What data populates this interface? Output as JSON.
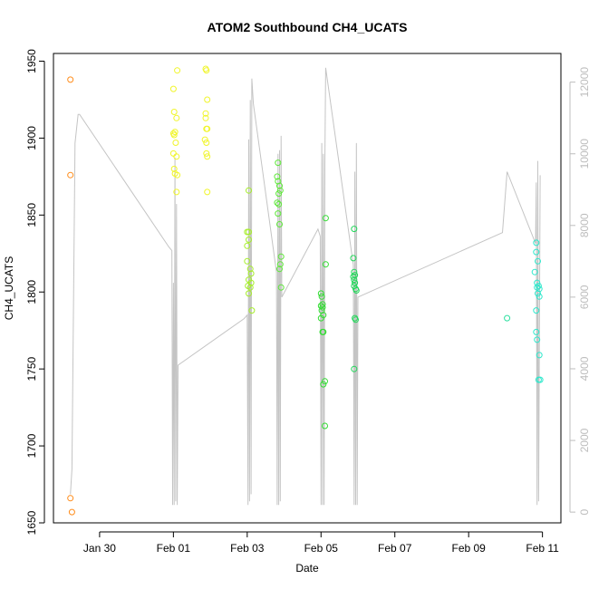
{
  "chart_data": {
    "type": "scatter",
    "title": "ATOM2 Southbound CH4_UCATS",
    "xlabel": "Date",
    "ylabel": "CH4_UCATS",
    "xlim": [
      "2017-01-28T18:00",
      "2017-02-11T12:00"
    ],
    "ylim": [
      1650,
      1955
    ],
    "y2lim": [
      -300,
      12800
    ],
    "x_ticks": [
      {
        "date": "2017-01-30",
        "label": "Jan 30"
      },
      {
        "date": "2017-02-01",
        "label": "Feb 01"
      },
      {
        "date": "2017-02-03",
        "label": "Feb 03"
      },
      {
        "date": "2017-02-05",
        "label": "Feb 05"
      },
      {
        "date": "2017-02-07",
        "label": "Feb 07"
      },
      {
        "date": "2017-02-09",
        "label": "Feb 09"
      },
      {
        "date": "2017-02-11",
        "label": "Feb 11"
      }
    ],
    "y_ticks": [
      1650,
      1700,
      1750,
      1800,
      1850,
      1900,
      1950
    ],
    "y2_ticks": [
      0,
      2000,
      4000,
      6000,
      8000,
      10000,
      12000
    ],
    "grid": false,
    "series": [
      {
        "color": "#ff8c1a",
        "points": [
          [
            "2017-01-29T05:00",
            1938
          ],
          [
            "2017-01-29T05:00",
            1876
          ],
          [
            "2017-01-29T05:00",
            1666
          ],
          [
            "2017-01-29T06:00",
            1657
          ]
        ]
      },
      {
        "color": "#f0f52a",
        "points": [
          [
            "2017-02-01T00:00",
            1932
          ],
          [
            "2017-02-01T00:30",
            1917
          ],
          [
            "2017-02-01T02:00",
            1913
          ],
          [
            "2017-02-01T02:30",
            1944
          ],
          [
            "2017-02-01T00:00",
            1903
          ],
          [
            "2017-02-01T00:30",
            1902
          ],
          [
            "2017-02-01T01:00",
            1904
          ],
          [
            "2017-02-01T01:30",
            1897
          ],
          [
            "2017-02-01T00:00",
            1890
          ],
          [
            "2017-02-01T02:00",
            1888
          ],
          [
            "2017-02-01T00:30",
            1880
          ],
          [
            "2017-02-01T01:00",
            1877
          ],
          [
            "2017-02-01T02:30",
            1876
          ],
          [
            "2017-02-01T02:00",
            1865
          ],
          [
            "2017-02-01T21:00",
            1945
          ],
          [
            "2017-02-01T21:30",
            1944
          ],
          [
            "2017-02-01T22:00",
            1925
          ],
          [
            "2017-02-01T21:00",
            1916
          ],
          [
            "2017-02-01T21:00",
            1913
          ],
          [
            "2017-02-01T21:30",
            1906
          ],
          [
            "2017-02-01T22:00",
            1906
          ],
          [
            "2017-02-01T20:30",
            1899
          ],
          [
            "2017-02-01T21:30",
            1897
          ],
          [
            "2017-02-01T21:30",
            1890
          ],
          [
            "2017-02-01T22:00",
            1888
          ],
          [
            "2017-02-01T22:00",
            1865
          ]
        ]
      },
      {
        "color": "#a6ee2a",
        "points": [
          [
            "2017-02-03T01:00",
            1866
          ],
          [
            "2017-02-03T00:00",
            1839
          ],
          [
            "2017-02-03T01:00",
            1839
          ],
          [
            "2017-02-03T01:00",
            1834
          ],
          [
            "2017-02-03T00:00",
            1830
          ],
          [
            "2017-02-03T00:00",
            1820
          ],
          [
            "2017-02-03T02:00",
            1815
          ],
          [
            "2017-02-03T02:30",
            1812
          ],
          [
            "2017-02-03T01:00",
            1808
          ],
          [
            "2017-02-03T02:30",
            1806
          ],
          [
            "2017-02-03T00:30",
            1804
          ],
          [
            "2017-02-03T02:00",
            1803
          ],
          [
            "2017-02-03T01:00",
            1799
          ],
          [
            "2017-02-03T03:00",
            1788
          ]
        ]
      },
      {
        "color": "#5ee83a",
        "points": [
          [
            "2017-02-03T20:00",
            1884
          ],
          [
            "2017-02-03T19:30",
            1875
          ],
          [
            "2017-02-03T20:00",
            1872
          ],
          [
            "2017-02-03T21:00",
            1869
          ],
          [
            "2017-02-03T21:30",
            1866
          ],
          [
            "2017-02-03T20:30",
            1864
          ],
          [
            "2017-02-03T19:30",
            1858
          ],
          [
            "2017-02-03T20:30",
            1857
          ],
          [
            "2017-02-03T20:00",
            1851
          ],
          [
            "2017-02-03T21:00",
            1844
          ],
          [
            "2017-02-03T22:00",
            1823
          ],
          [
            "2017-02-03T21:30",
            1818
          ],
          [
            "2017-02-03T21:00",
            1815
          ],
          [
            "2017-02-03T22:00",
            1803
          ]
        ]
      },
      {
        "color": "#33dd33",
        "points": [
          [
            "2017-02-05T00:00",
            1799
          ],
          [
            "2017-02-05T00:30",
            1797
          ],
          [
            "2017-02-05T01:00",
            1792
          ],
          [
            "2017-02-05T00:00",
            1791
          ],
          [
            "2017-02-05T01:00",
            1790
          ],
          [
            "2017-02-05T00:30",
            1788
          ],
          [
            "2017-02-05T01:30",
            1785
          ],
          [
            "2017-02-05T00:00",
            1783
          ],
          [
            "2017-02-05T01:00",
            1774
          ],
          [
            "2017-02-05T01:30",
            1774
          ],
          [
            "2017-02-05T03:00",
            1848
          ],
          [
            "2017-02-05T03:00",
            1818
          ],
          [
            "2017-02-05T02:30",
            1742
          ],
          [
            "2017-02-05T01:30",
            1740
          ],
          [
            "2017-02-05T02:30",
            1713
          ]
        ]
      },
      {
        "color": "#22d85a",
        "points": [
          [
            "2017-02-05T21:30",
            1841
          ],
          [
            "2017-02-05T21:00",
            1822
          ],
          [
            "2017-02-05T21:30",
            1813
          ],
          [
            "2017-02-05T22:00",
            1811
          ],
          [
            "2017-02-05T21:00",
            1810
          ],
          [
            "2017-02-05T21:30",
            1808
          ],
          [
            "2017-02-05T22:00",
            1806
          ],
          [
            "2017-02-05T21:30",
            1804
          ],
          [
            "2017-02-05T22:30",
            1802
          ],
          [
            "2017-02-05T23:00",
            1801
          ],
          [
            "2017-02-05T22:00",
            1783
          ],
          [
            "2017-02-05T22:30",
            1782
          ],
          [
            "2017-02-05T21:30",
            1750
          ]
        ]
      },
      {
        "color": "#2ee0a0",
        "points": [
          [
            "2017-02-10T01:00",
            1783
          ]
        ]
      },
      {
        "color": "#2ee8cc",
        "points": [
          [
            "2017-02-10T20:00",
            1832
          ],
          [
            "2017-02-10T20:00",
            1826
          ],
          [
            "2017-02-10T21:00",
            1820
          ],
          [
            "2017-02-10T19:00",
            1813
          ],
          [
            "2017-02-10T20:30",
            1806
          ],
          [
            "2017-02-10T21:30",
            1804
          ],
          [
            "2017-02-10T20:30",
            1803
          ],
          [
            "2017-02-10T22:00",
            1802
          ],
          [
            "2017-02-10T21:00",
            1799
          ],
          [
            "2017-02-10T22:00",
            1797
          ],
          [
            "2017-02-10T20:00",
            1788
          ],
          [
            "2017-02-10T20:00",
            1774
          ],
          [
            "2017-02-10T20:30",
            1769
          ],
          [
            "2017-02-10T22:00",
            1759
          ],
          [
            "2017-02-10T21:30",
            1743
          ],
          [
            "2017-02-10T22:30",
            1743
          ]
        ]
      }
    ],
    "secondary_line": {
      "color": "#c4c4c4",
      "axis": "right",
      "points": [
        [
          "2017-01-29T05:00",
          500
        ],
        [
          "2017-01-29T06:00",
          1200
        ],
        [
          "2017-01-29T08:00",
          10300
        ],
        [
          "2017-01-29T10:00",
          11100
        ],
        [
          "2017-01-29T11:00",
          11100
        ],
        [
          "2017-01-31T21:00",
          7400
        ],
        [
          "2017-01-31T23:00",
          7300
        ],
        [
          "2017-01-31T23:30",
          200
        ],
        [
          "2017-02-01T00:00",
          6400
        ],
        [
          "2017-02-01T00:30",
          200
        ],
        [
          "2017-02-01T01:00",
          9900
        ],
        [
          "2017-02-01T01:30",
          300
        ],
        [
          "2017-02-01T02:00",
          8600
        ],
        [
          "2017-02-01T02:30",
          200
        ],
        [
          "2017-02-01T03:00",
          4100
        ],
        [
          "2017-02-02T22:00",
          5400
        ],
        [
          "2017-02-03T00:00",
          5500
        ],
        [
          "2017-02-03T00:30",
          200
        ],
        [
          "2017-02-03T01:00",
          10400
        ],
        [
          "2017-02-03T01:30",
          300
        ],
        [
          "2017-02-03T02:00",
          11500
        ],
        [
          "2017-02-03T02:30",
          500
        ],
        [
          "2017-02-03T03:00",
          12100
        ],
        [
          "2017-02-03T04:00",
          11400
        ],
        [
          "2017-02-03T19:00",
          6700
        ],
        [
          "2017-02-03T19:30",
          200
        ],
        [
          "2017-02-03T20:00",
          10000
        ],
        [
          "2017-02-03T20:30",
          200
        ],
        [
          "2017-02-03T21:00",
          10100
        ],
        [
          "2017-02-03T21:30",
          300
        ],
        [
          "2017-02-03T22:00",
          10500
        ],
        [
          "2017-02-03T22:30",
          6000
        ],
        [
          "2017-02-04T22:00",
          7900
        ],
        [
          "2017-02-04T23:30",
          7700
        ],
        [
          "2017-02-05T00:00",
          200
        ],
        [
          "2017-02-05T00:30",
          10300
        ],
        [
          "2017-02-05T01:00",
          200
        ],
        [
          "2017-02-05T01:30",
          10000
        ],
        [
          "2017-02-05T02:00",
          200
        ],
        [
          "2017-02-05T02:30",
          9700
        ],
        [
          "2017-02-05T03:00",
          12400
        ],
        [
          "2017-02-05T21:00",
          6900
        ],
        [
          "2017-02-05T21:30",
          200
        ],
        [
          "2017-02-05T22:00",
          9500
        ],
        [
          "2017-02-05T22:30",
          200
        ],
        [
          "2017-02-05T23:00",
          10300
        ],
        [
          "2017-02-05T23:30",
          200
        ],
        [
          "2017-02-06T00:00",
          6000
        ],
        [
          "2017-02-09T22:00",
          7800
        ],
        [
          "2017-02-10T01:00",
          9500
        ],
        [
          "2017-02-10T19:30",
          7500
        ],
        [
          "2017-02-10T20:00",
          9200
        ],
        [
          "2017-02-10T20:30",
          200
        ],
        [
          "2017-02-10T21:00",
          9800
        ],
        [
          "2017-02-10T21:30",
          300
        ],
        [
          "2017-02-10T22:30",
          9400
        ]
      ]
    }
  }
}
